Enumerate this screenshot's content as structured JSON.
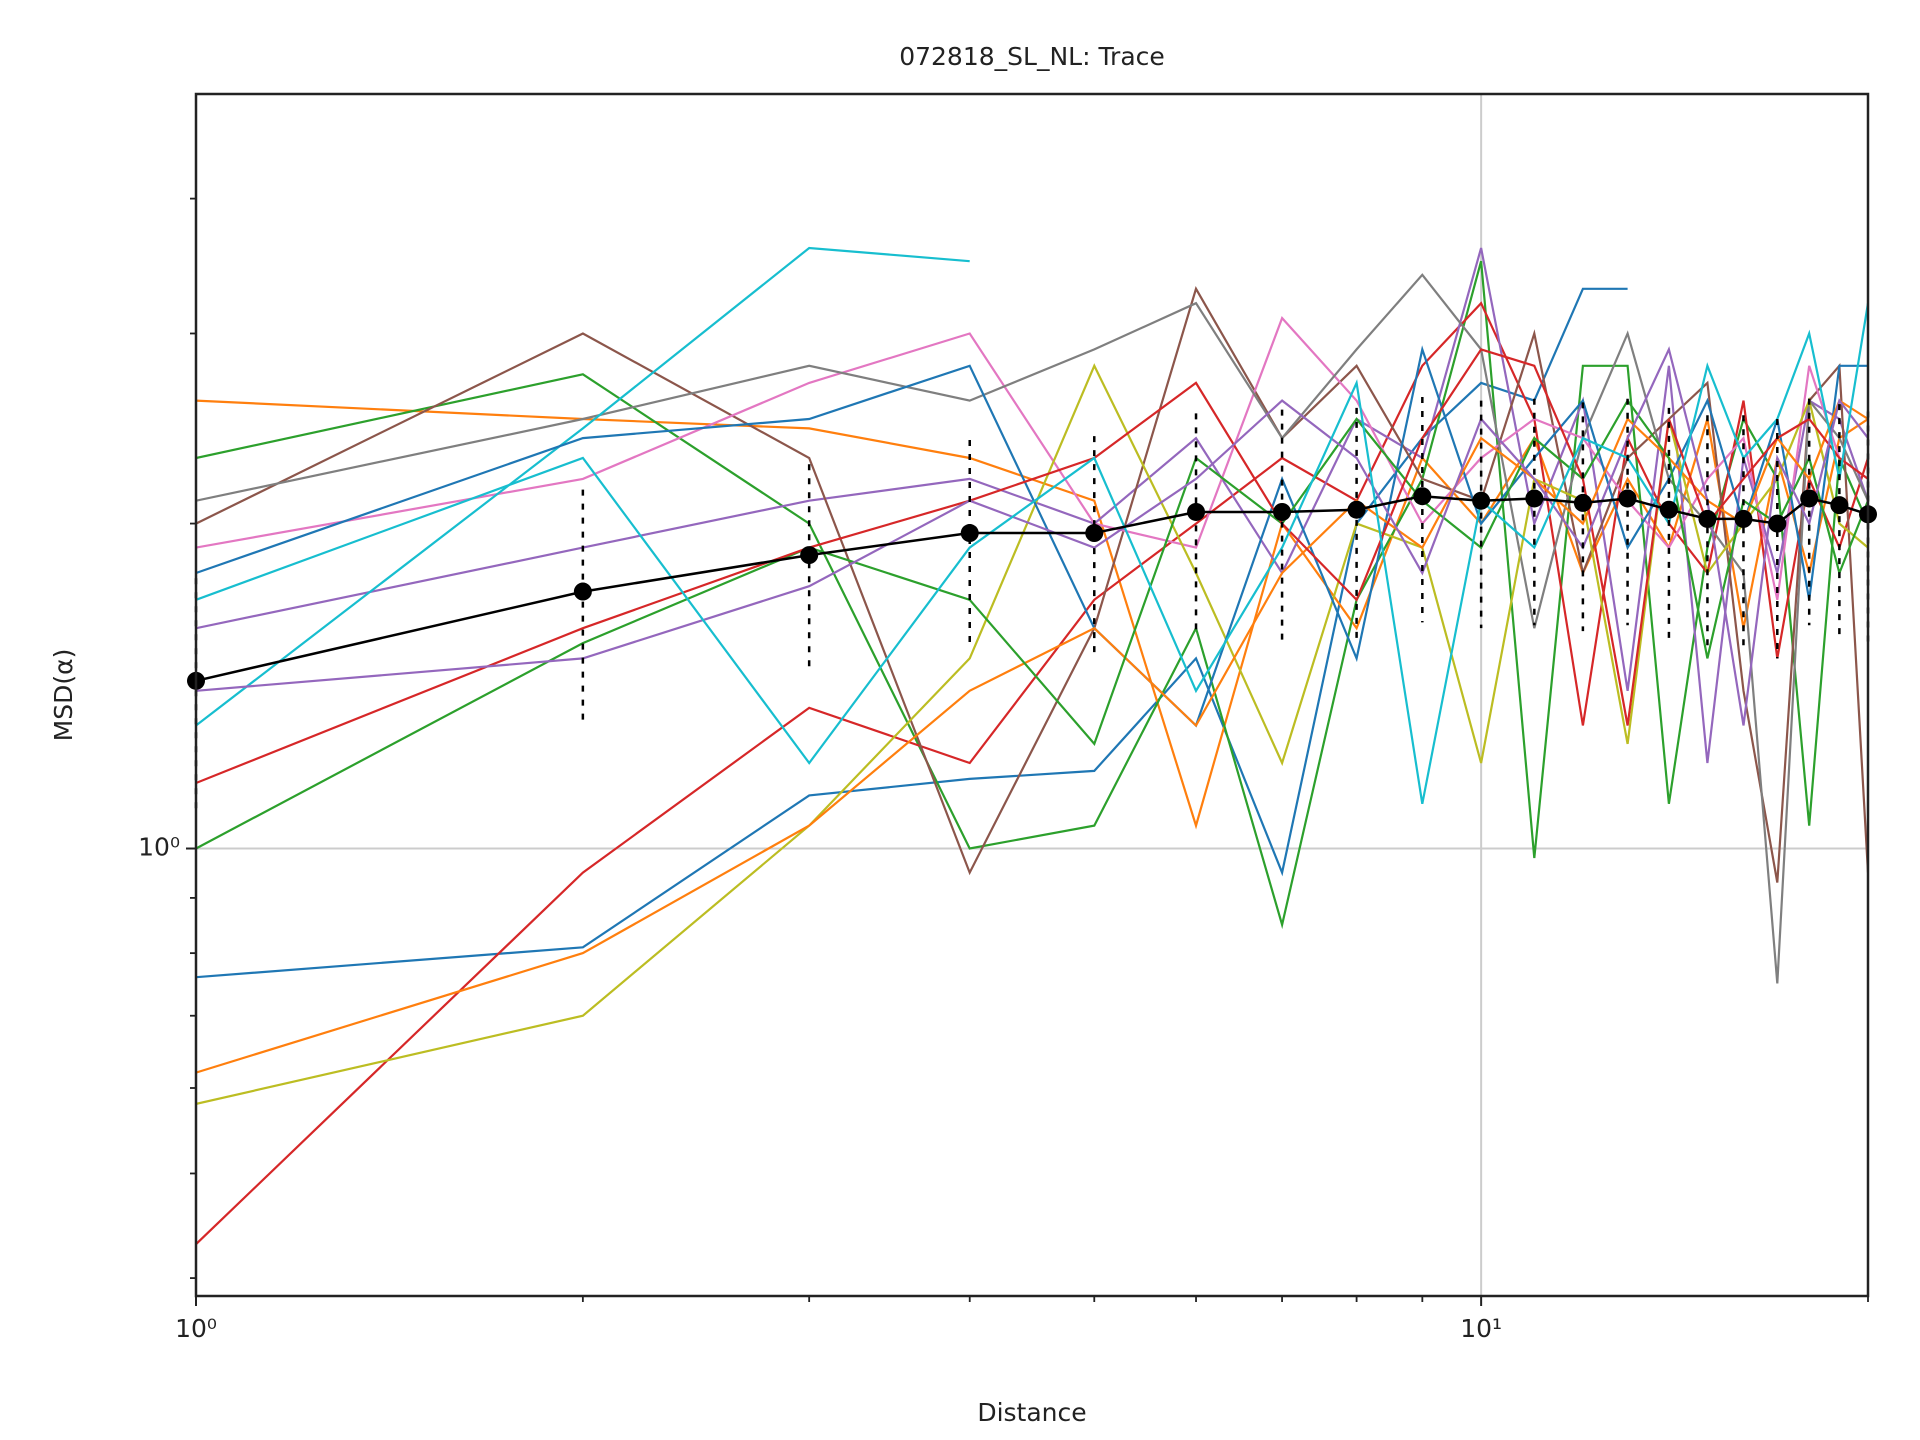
{
  "chart_data": {
    "type": "line",
    "title": "072818_SL_NL: Trace",
    "xlabel": "Distance",
    "ylabel": "MSD(α)",
    "xscale": "log",
    "yscale": "log",
    "grid": true,
    "xlim": [
      1,
      20
    ],
    "ylim": [
      0.385,
      5
    ],
    "xticks": [
      {
        "value": 1,
        "label": "10⁰"
      },
      {
        "value": 10,
        "label": "10¹"
      }
    ],
    "yticks": [
      {
        "value": 1,
        "label": "10⁰"
      }
    ],
    "xminor_ticks": [
      2,
      3,
      4,
      5,
      6,
      7,
      8,
      9,
      20
    ],
    "yminor_ticks": [
      0.4,
      0.5,
      0.6,
      0.7,
      0.8,
      0.9,
      2,
      3,
      4
    ],
    "x": [
      1,
      2,
      3,
      4,
      5,
      6,
      7,
      8,
      9,
      10,
      11,
      12,
      13,
      14,
      15,
      16,
      17,
      18,
      19,
      20
    ],
    "series": [
      {
        "color": "#1f77b4",
        "values": [
          0.76,
          0.81,
          1.12,
          1.16,
          1.18,
          1.5,
          0.95,
          2.0,
          2.4,
          2.7,
          2.6,
          3.3,
          3.3,
          null,
          null,
          null,
          null,
          null,
          null,
          null
        ]
      },
      {
        "color": "#ff7f0e",
        "values": [
          2.6,
          2.5,
          2.45,
          2.3,
          2.1,
          1.05,
          2.0,
          1.6,
          2.3,
          2.0,
          2.4,
          1.8,
          2.2,
          1.9,
          2.5,
          1.6,
          2.3,
          1.8,
          2.4,
          2.5
        ]
      },
      {
        "color": "#2ca02c",
        "values": [
          2.3,
          2.75,
          2.0,
          1.0,
          1.05,
          1.6,
          0.85,
          1.7,
          2.2,
          3.5,
          0.98,
          2.8,
          2.8,
          1.1,
          1.9,
          2.5,
          2.2,
          1.05,
          2.3,
          2.0
        ]
      },
      {
        "color": "#d62728",
        "values": [
          0.43,
          0.95,
          1.35,
          1.2,
          1.7,
          2.0,
          2.3,
          2.1,
          2.8,
          3.2,
          2.5,
          1.3,
          2.4,
          2.0,
          1.8,
          2.6,
          1.5,
          2.2,
          1.9,
          2.3
        ]
      },
      {
        "color": "#9467bd",
        "values": [
          1.6,
          1.9,
          2.1,
          2.2,
          2.0,
          2.4,
          1.8,
          2.5,
          2.3,
          3.6,
          2.0,
          2.6,
          1.4,
          2.8,
          1.2,
          2.3,
          1.8,
          2.6,
          2.5,
          2.1
        ]
      },
      {
        "color": "#8c564b",
        "values": [
          2.0,
          3.0,
          2.3,
          0.95,
          1.6,
          3.3,
          2.4,
          2.8,
          2.2,
          2.1,
          3.0,
          1.8,
          2.3,
          2.5,
          2.7,
          1.4,
          0.93,
          2.6,
          2.8,
          0.95
        ]
      },
      {
        "color": "#e377c2",
        "values": [
          1.9,
          2.2,
          2.7,
          3.0,
          2.0,
          1.9,
          3.1,
          2.6,
          2.0,
          2.3,
          2.5,
          2.4,
          2.1,
          1.9,
          2.2,
          2.4,
          1.7,
          2.8,
          2.3,
          2.2
        ]
      },
      {
        "color": "#7f7f7f",
        "values": [
          2.1,
          2.5,
          2.8,
          2.6,
          2.9,
          3.2,
          2.4,
          2.9,
          3.4,
          2.9,
          1.6,
          2.4,
          3.0,
          2.2,
          2.0,
          1.8,
          0.75,
          2.6,
          2.4,
          2.1
        ]
      },
      {
        "color": "#bcbd22",
        "values": [
          0.58,
          0.7,
          1.05,
          1.5,
          2.8,
          1.8,
          1.2,
          2.0,
          1.9,
          1.2,
          2.2,
          2.1,
          1.25,
          2.5,
          1.8,
          2.0,
          2.2,
          2.6,
          2.0,
          1.9
        ]
      },
      {
        "color": "#17becf",
        "values": [
          1.3,
          2.45,
          3.6,
          3.5,
          null,
          null,
          null,
          null,
          null,
          null,
          null,
          null,
          null,
          null,
          null,
          null,
          null,
          null,
          null,
          null
        ]
      },
      {
        "color": "#1f77b4",
        "values": [
          1.8,
          2.4,
          2.5,
          2.8,
          1.6,
          1.3,
          2.2,
          1.5,
          2.9,
          2.0,
          2.3,
          2.6,
          1.9,
          2.2,
          2.6,
          2.0,
          2.5,
          1.7,
          2.8,
          2.8
        ]
      },
      {
        "color": "#ff7f0e",
        "values": [
          0.62,
          0.8,
          1.05,
          1.4,
          1.6,
          1.3,
          1.8,
          2.1,
          1.9,
          2.4,
          2.2,
          2.0,
          2.5,
          2.3,
          2.1,
          2.0,
          2.4,
          2.2,
          2.6,
          2.5
        ]
      },
      {
        "color": "#2ca02c",
        "values": [
          1.0,
          1.55,
          1.9,
          1.7,
          1.25,
          2.3,
          2.0,
          2.5,
          2.1,
          1.9,
          2.4,
          2.2,
          2.6,
          2.3,
          1.5,
          2.1,
          2.0,
          2.3,
          1.8,
          2.1
        ]
      },
      {
        "color": "#d62728",
        "values": [
          1.15,
          1.6,
          1.9,
          2.1,
          2.3,
          2.7,
          2.0,
          1.7,
          2.4,
          2.9,
          2.8,
          2.2,
          1.3,
          2.5,
          2.0,
          2.2,
          2.4,
          2.5,
          2.3,
          2.2
        ]
      },
      {
        "color": "#9467bd",
        "values": [
          1.4,
          1.5,
          1.75,
          2.1,
          1.9,
          2.2,
          2.6,
          2.3,
          1.8,
          2.5,
          2.2,
          1.9,
          2.4,
          2.9,
          2.1,
          1.3,
          2.3,
          2.0,
          2.6,
          2.4
        ]
      },
      {
        "color": "#17becf",
        "values": [
          1.7,
          2.3,
          1.2,
          1.9,
          2.3,
          1.4,
          1.9,
          2.7,
          1.1,
          2.1,
          1.9,
          2.4,
          2.3,
          2.0,
          2.8,
          2.3,
          2.5,
          3.0,
          2.2,
          3.2
        ]
      }
    ],
    "mean": {
      "color": "#000000",
      "values": [
        1.43,
        1.73,
        1.87,
        1.96,
        1.96,
        2.05,
        2.05,
        2.06,
        2.12,
        2.1,
        2.11,
        2.09,
        2.11,
        2.06,
        2.02,
        2.02,
        2.0,
        2.11,
        2.08,
        2.04
      ],
      "errors": [
        0.35,
        0.42,
        0.4,
        0.43,
        0.45,
        0.48,
        0.5,
        0.5,
        0.5,
        0.5,
        0.5,
        0.5,
        0.5,
        0.5,
        0.5,
        0.5,
        0.5,
        0.5,
        0.5,
        0.5
      ]
    }
  }
}
